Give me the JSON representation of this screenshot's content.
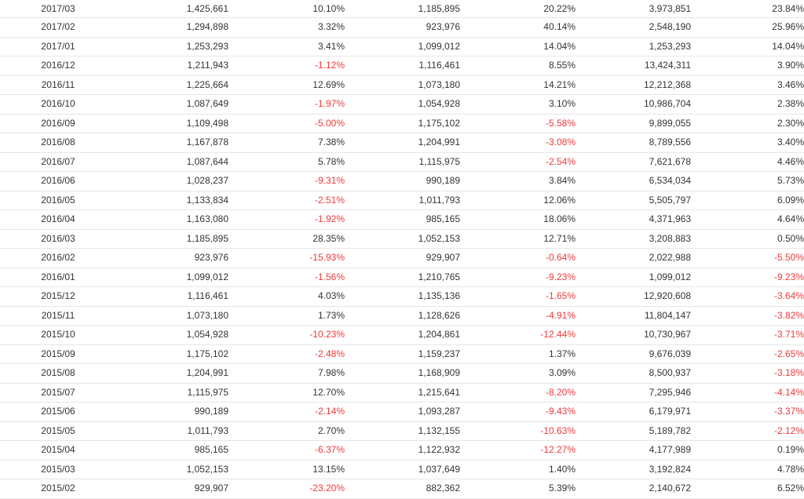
{
  "colors": {
    "text": "#333333",
    "negative": "#f03a3a",
    "row_border": "#e6e6e6"
  },
  "rows": [
    [
      "2017/03",
      "1,425,661",
      "10.10%",
      "1,185,895",
      "20.22%",
      "3,973,851",
      "23.84%"
    ],
    [
      "2017/02",
      "1,294,898",
      "3.32%",
      "923,976",
      "40.14%",
      "2,548,190",
      "25.96%"
    ],
    [
      "2017/01",
      "1,253,293",
      "3.41%",
      "1,099,012",
      "14.04%",
      "1,253,293",
      "14.04%"
    ],
    [
      "2016/12",
      "1,211,943",
      "-1.12%",
      "1,116,461",
      "8.55%",
      "13,424,311",
      "3.90%"
    ],
    [
      "2016/11",
      "1,225,664",
      "12.69%",
      "1,073,180",
      "14.21%",
      "12,212,368",
      "3.46%"
    ],
    [
      "2016/10",
      "1,087,649",
      "-1.97%",
      "1,054,928",
      "3.10%",
      "10,986,704",
      "2.38%"
    ],
    [
      "2016/09",
      "1,109,498",
      "-5.00%",
      "1,175,102",
      "-5.58%",
      "9,899,055",
      "2.30%"
    ],
    [
      "2016/08",
      "1,167,878",
      "7.38%",
      "1,204,991",
      "-3.08%",
      "8,789,556",
      "3.40%"
    ],
    [
      "2016/07",
      "1,087,644",
      "5.78%",
      "1,115,975",
      "-2.54%",
      "7,621,678",
      "4.46%"
    ],
    [
      "2016/06",
      "1,028,237",
      "-9.31%",
      "990,189",
      "3.84%",
      "6,534,034",
      "5.73%"
    ],
    [
      "2016/05",
      "1,133,834",
      "-2.51%",
      "1,011,793",
      "12.06%",
      "5,505,797",
      "6.09%"
    ],
    [
      "2016/04",
      "1,163,080",
      "-1.92%",
      "985,165",
      "18.06%",
      "4,371,963",
      "4.64%"
    ],
    [
      "2016/03",
      "1,185,895",
      "28.35%",
      "1,052,153",
      "12.71%",
      "3,208,883",
      "0.50%"
    ],
    [
      "2016/02",
      "923,976",
      "-15.93%",
      "929,907",
      "-0.64%",
      "2,022,988",
      "-5.50%"
    ],
    [
      "2016/01",
      "1,099,012",
      "-1.56%",
      "1,210,765",
      "-9.23%",
      "1,099,012",
      "-9.23%"
    ],
    [
      "2015/12",
      "1,116,461",
      "4.03%",
      "1,135,136",
      "-1.65%",
      "12,920,608",
      "-3.64%"
    ],
    [
      "2015/11",
      "1,073,180",
      "1.73%",
      "1,128,626",
      "-4.91%",
      "11,804,147",
      "-3.82%"
    ],
    [
      "2015/10",
      "1,054,928",
      "-10.23%",
      "1,204,861",
      "-12.44%",
      "10,730,967",
      "-3.71%"
    ],
    [
      "2015/09",
      "1,175,102",
      "-2.48%",
      "1,159,237",
      "1.37%",
      "9,676,039",
      "-2.65%"
    ],
    [
      "2015/08",
      "1,204,991",
      "7.98%",
      "1,168,909",
      "3.09%",
      "8,500,937",
      "-3.18%"
    ],
    [
      "2015/07",
      "1,115,975",
      "12.70%",
      "1,215,641",
      "-8.20%",
      "7,295,946",
      "-4.14%"
    ],
    [
      "2015/06",
      "990,189",
      "-2.14%",
      "1,093,287",
      "-9.43%",
      "6,179,971",
      "-3.37%"
    ],
    [
      "2015/05",
      "1,011,793",
      "2.70%",
      "1,132,155",
      "-10.63%",
      "5,189,782",
      "-2.12%"
    ],
    [
      "2015/04",
      "985,165",
      "-6.37%",
      "1,122,932",
      "-12.27%",
      "4,177,989",
      "0.19%"
    ],
    [
      "2015/03",
      "1,052,153",
      "13.15%",
      "1,037,649",
      "1.40%",
      "3,192,824",
      "4.78%"
    ],
    [
      "2015/02",
      "929,907",
      "-23.20%",
      "882,362",
      "5.39%",
      "2,140,672",
      "6.52%"
    ]
  ]
}
